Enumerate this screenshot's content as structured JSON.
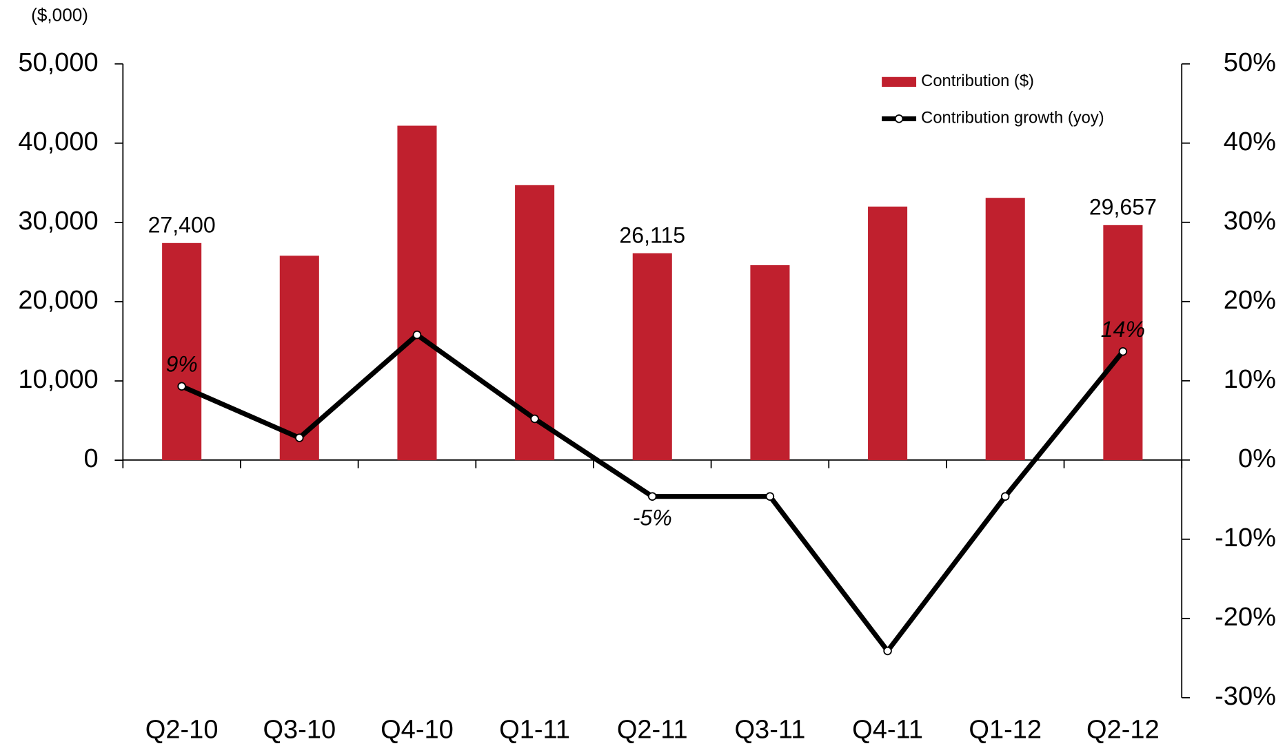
{
  "chart_data": {
    "type": "bar",
    "y_axis_label": "($,000)",
    "categories": [
      "Q2-10",
      "Q3-10",
      "Q4-10",
      "Q1-11",
      "Q2-11",
      "Q3-11",
      "Q4-11",
      "Q1-12",
      "Q2-12"
    ],
    "series": [
      {
        "name": "Contribution ($)",
        "type": "bar",
        "color": "#c0202e",
        "values": [
          27400,
          25800,
          42200,
          34700,
          26115,
          24600,
          32000,
          33100,
          29657
        ],
        "value_labels": [
          "27,400",
          null,
          null,
          null,
          "26,115",
          null,
          null,
          null,
          "29,657"
        ]
      },
      {
        "name": "Contribution growth (yoy)",
        "type": "line",
        "axis": "y2",
        "color": "#000000",
        "values": [
          9.3,
          2.8,
          15.8,
          5.2,
          -4.6,
          -4.6,
          -24.1,
          -4.6,
          13.7
        ],
        "value_labels": [
          "9%",
          null,
          null,
          null,
          "-5%",
          null,
          null,
          null,
          "14%"
        ]
      }
    ],
    "ylim": [
      0,
      50000
    ],
    "yticks": [
      0,
      {
        "value": 10000,
        "label": "10,000"
      },
      {
        "value": 20000,
        "label": "20,000"
      },
      {
        "value": 30000,
        "label": "30,000"
      },
      {
        "value": 40000,
        "label": "40,000"
      },
      {
        "value": 50000,
        "label": "50,000"
      }
    ],
    "y2lim": [
      -30,
      50
    ],
    "y2ticks": [
      {
        "value": -30,
        "label": "-30%"
      },
      {
        "value": -20,
        "label": "-20%"
      },
      {
        "value": -10,
        "label": "-10%"
      },
      {
        "value": 0,
        "label": "0%"
      },
      {
        "value": 10,
        "label": "10%"
      },
      {
        "value": 20,
        "label": "20%"
      },
      {
        "value": 30,
        "label": "30%"
      },
      {
        "value": 40,
        "label": "40%"
      },
      {
        "value": 50,
        "label": "50%"
      }
    ],
    "legend": "top-right"
  }
}
